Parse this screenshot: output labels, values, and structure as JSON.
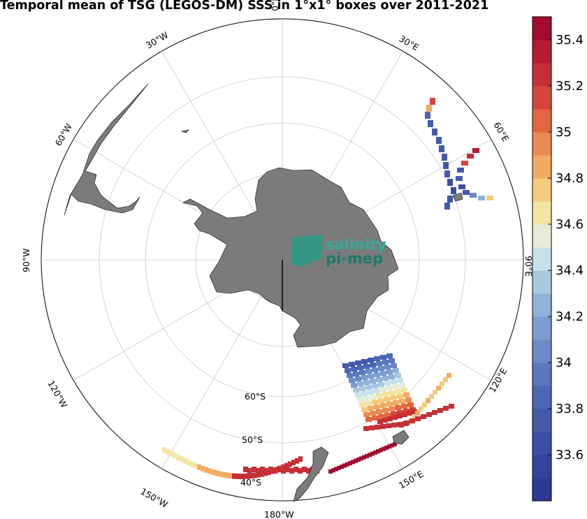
{
  "title": "Temporal mean of TSG (LEGOS-DM) SSS in 1°x1° boxes over 2011-2021",
  "map": {
    "projection": "south-polar stereographic",
    "longitude_labels": [
      {
        "text": "0°E"
      },
      {
        "text": "30°E"
      },
      {
        "text": "60°E"
      },
      {
        "text": "90°E"
      },
      {
        "text": "120°E"
      },
      {
        "text": "150°E"
      },
      {
        "text": "180°W"
      },
      {
        "text": "150°W"
      },
      {
        "text": "120°W"
      },
      {
        "text": "90°W"
      },
      {
        "text": "60°W"
      },
      {
        "text": "30°W"
      }
    ],
    "latitude_labels": [
      {
        "text": "60°S"
      },
      {
        "text": "50°S"
      },
      {
        "text": "40°S"
      }
    ],
    "colors": {
      "land": "#7b7b7b",
      "grid": "#c8c8c8",
      "ocean": "#ffffff"
    }
  },
  "colorbar": {
    "min": 33.4,
    "max": 35.5,
    "tick_labels": [
      "35.4",
      "35.2",
      "35",
      "34.8",
      "34.6",
      "34.4",
      "34.2",
      "34",
      "33.8",
      "33.6"
    ],
    "colors": [
      "#2c3a94",
      "#33439d",
      "#3b4ea6",
      "#4259ad",
      "#4b66b5",
      "#5a78bf",
      "#6a8bc7",
      "#7b9ed0",
      "#90b2d8",
      "#a8c9e1",
      "#c7e1eb",
      "#e6ecd8",
      "#f4e4a4",
      "#f5cb7b",
      "#f2ab62",
      "#eb8a52",
      "#e2663f",
      "#d5463a",
      "#c53036",
      "#b51c33",
      "#a20b2f"
    ]
  },
  "logo": {
    "line1": "salinity",
    "line2": "pi-mep"
  }
}
